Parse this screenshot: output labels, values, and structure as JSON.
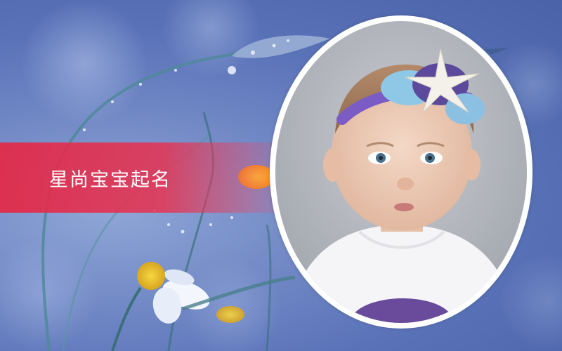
{
  "banner": {
    "title": "星尚宝宝起名",
    "color": "#e4284a"
  },
  "background": {
    "description_icon": "flower-drops-background",
    "tint": "#6f86c4"
  },
  "photo": {
    "icon": "baby-portrait"
  }
}
